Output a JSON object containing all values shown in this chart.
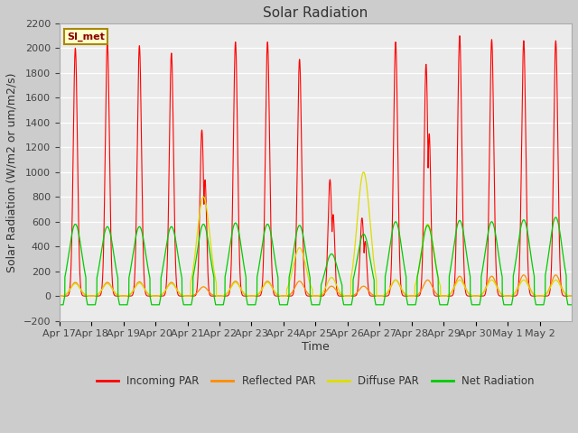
{
  "title": "Solar Radiation",
  "ylabel": "Solar Radiation (W/m2 or um/m2/s)",
  "xlabel": "Time",
  "ylim": [
    -200,
    2200
  ],
  "x_tick_labels": [
    "Apr 17",
    "Apr 18",
    "Apr 19",
    "Apr 20",
    "Apr 21",
    "Apr 22",
    "Apr 23",
    "Apr 24",
    "Apr 25",
    "Apr 26",
    "Apr 27",
    "Apr 28",
    "Apr 29",
    "Apr 30",
    "May 1",
    "May 2"
  ],
  "fig_bg_color": "#cccccc",
  "plot_bg_color": "#ebebeb",
  "legend_labels": [
    "Incoming PAR",
    "Reflected PAR",
    "Diffuse PAR",
    "Net Radiation"
  ],
  "legend_colors": [
    "#ff0000",
    "#ff8c00",
    "#dddd00",
    "#00cc00"
  ],
  "label_box_text": "SI_met",
  "title_fontsize": 11,
  "axis_label_fontsize": 9,
  "tick_label_fontsize": 8,
  "n_days": 16,
  "pts_per_day": 480,
  "incoming_peaks": [
    2000,
    2050,
    2020,
    1960,
    1340,
    2050,
    2050,
    1910,
    940,
    630,
    2050,
    1870,
    2100,
    2070,
    2060,
    2060
  ],
  "incoming_partial": [
    0,
    0,
    0,
    0,
    1,
    0,
    0,
    0,
    1,
    1,
    0,
    1,
    0,
    0,
    0,
    0
  ],
  "reflected_peaks": [
    110,
    110,
    115,
    110,
    75,
    120,
    120,
    120,
    80,
    80,
    130,
    130,
    160,
    160,
    170,
    170
  ],
  "diffuse_peaks": [
    100,
    100,
    105,
    100,
    800,
    110,
    110,
    390,
    150,
    1000,
    130,
    580,
    130,
    130,
    130,
    130
  ],
  "net_peaks": [
    580,
    560,
    560,
    560,
    580,
    590,
    580,
    570,
    340,
    500,
    600,
    570,
    610,
    600,
    615,
    635
  ],
  "night_net": -70
}
